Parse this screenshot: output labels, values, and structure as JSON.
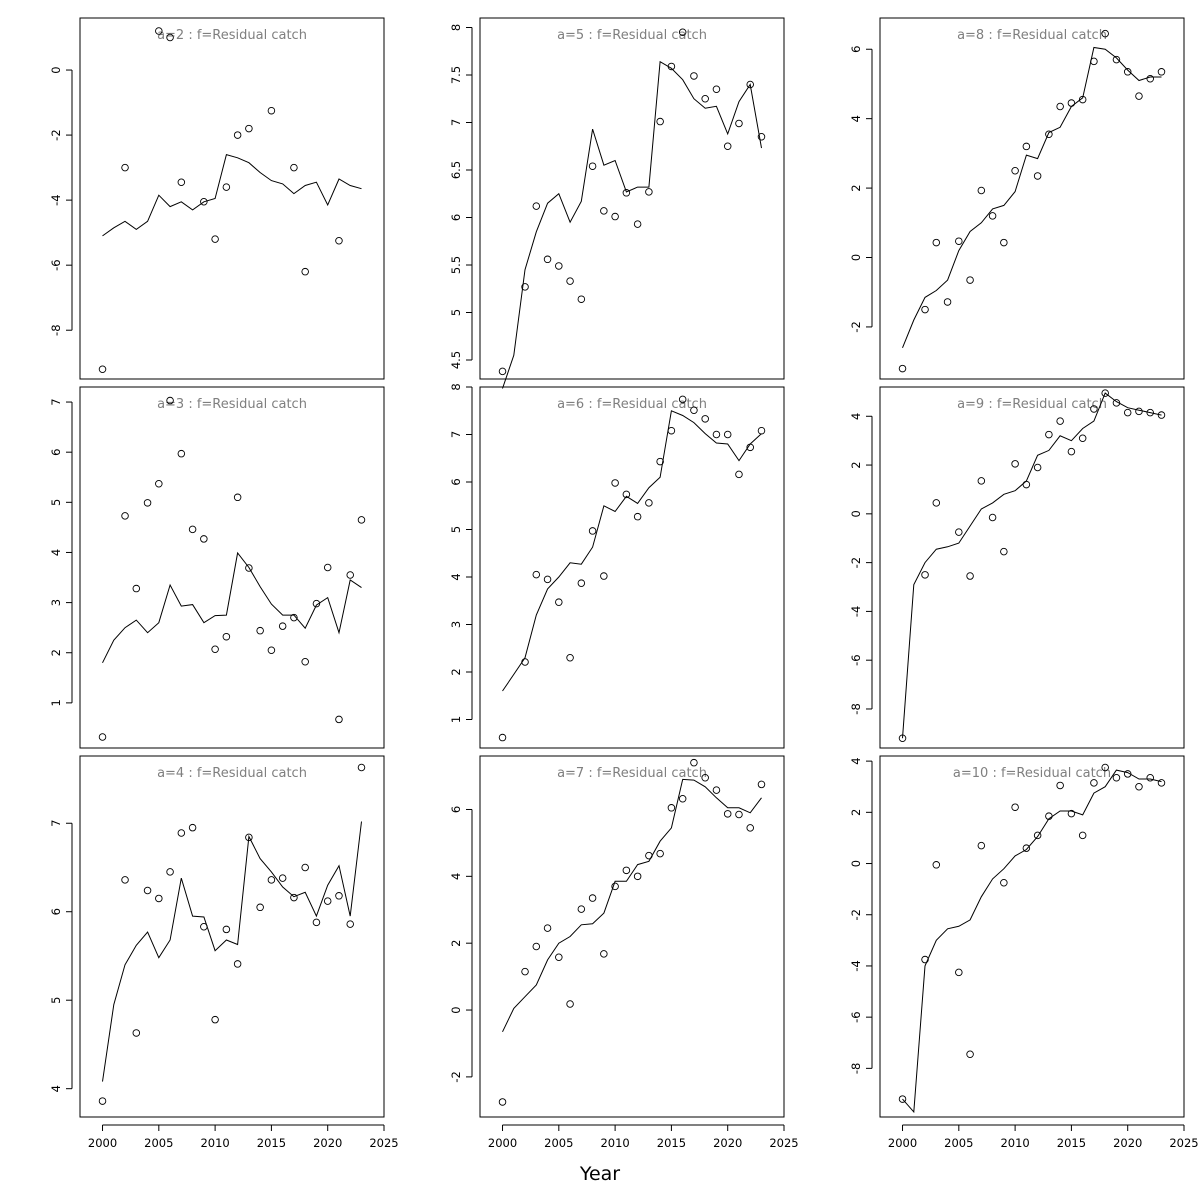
{
  "figure": {
    "xlabel": "Year",
    "x_ticks": [
      "2000",
      "2005",
      "2010",
      "2015",
      "2020",
      "2025"
    ]
  },
  "chart_data": [
    {
      "type": "line",
      "title": "a=2  :  f=Residual catch",
      "xlim": [
        1998,
        2025
      ],
      "ylim": [
        -9.5,
        1.6
      ],
      "y_ticks": [
        -8,
        -6,
        -4,
        -2,
        0
      ],
      "series": [
        {
          "type": "scatter",
          "x": [
            2000,
            2002,
            2005,
            2006,
            2007,
            2009,
            2010,
            2011,
            2012,
            2013,
            2015,
            2017,
            2018,
            2021
          ],
          "y": [
            -9.2,
            -3.0,
            1.2,
            1.0,
            -3.45,
            -4.05,
            -5.2,
            -3.6,
            -2.0,
            -1.8,
            -1.25,
            -3.0,
            -6.2,
            -5.25
          ]
        },
        {
          "type": "line",
          "x": [
            2000,
            2001,
            2002,
            2003,
            2004,
            2005,
            2006,
            2007,
            2008,
            2009,
            2010,
            2011,
            2012,
            2013,
            2014,
            2015,
            2016,
            2017,
            2018,
            2019,
            2020,
            2021,
            2022,
            2023
          ],
          "y": [
            -5.1,
            -4.85,
            -4.65,
            -4.9,
            -4.65,
            -3.85,
            -4.2,
            -4.05,
            -4.3,
            -4.05,
            -3.95,
            -2.6,
            -2.7,
            -2.85,
            -3.15,
            -3.4,
            -3.5,
            -3.8,
            -3.55,
            -3.45,
            -4.15,
            -3.35,
            -3.55,
            -3.65
          ]
        }
      ]
    },
    {
      "type": "line",
      "title": "a=5  :  f=Residual catch",
      "xlim": [
        1998,
        2025
      ],
      "ylim": [
        4.3,
        8.1
      ],
      "y_ticks": [
        4.5,
        5.0,
        5.5,
        6.0,
        6.5,
        7.0,
        7.5,
        8.0
      ],
      "series": [
        {
          "type": "scatter",
          "x": [
            2000,
            2002,
            2003,
            2004,
            2005,
            2006,
            2007,
            2008,
            2009,
            2010,
            2011,
            2012,
            2013,
            2014,
            2015,
            2016,
            2017,
            2018,
            2019,
            2020,
            2021,
            2022,
            2023
          ],
          "y": [
            4.38,
            5.27,
            6.12,
            5.56,
            5.49,
            5.33,
            5.14,
            6.54,
            6.07,
            6.01,
            6.26,
            5.93,
            6.27,
            7.01,
            7.59,
            7.95,
            7.49,
            7.25,
            7.35,
            6.75,
            6.99,
            7.4,
            6.85
          ]
        },
        {
          "type": "line",
          "x": [
            2000,
            2001,
            2002,
            2003,
            2004,
            2005,
            2006,
            2007,
            2008,
            2009,
            2010,
            2011,
            2012,
            2013,
            2014,
            2015,
            2016,
            2017,
            2018,
            2019,
            2020,
            2021,
            2022,
            2023
          ],
          "y": [
            4.2,
            4.55,
            5.45,
            5.85,
            6.15,
            6.25,
            5.95,
            6.17,
            6.93,
            6.55,
            6.6,
            6.27,
            6.32,
            6.32,
            7.64,
            7.57,
            7.45,
            7.25,
            7.15,
            7.17,
            6.88,
            7.22,
            7.4,
            6.73
          ]
        }
      ]
    },
    {
      "type": "line",
      "title": "a=8  :  f=Residual catch",
      "xlim": [
        1998,
        2025
      ],
      "ylim": [
        -3.5,
        6.9
      ],
      "y_ticks": [
        -2,
        0,
        2,
        4,
        6
      ],
      "series": [
        {
          "type": "scatter",
          "x": [
            2000,
            2002,
            2003,
            2004,
            2005,
            2006,
            2007,
            2008,
            2009,
            2010,
            2011,
            2012,
            2013,
            2014,
            2015,
            2016,
            2017,
            2018,
            2019,
            2020,
            2021,
            2022,
            2023
          ],
          "y": [
            -3.2,
            -1.5,
            0.43,
            -1.28,
            0.47,
            -0.65,
            1.93,
            1.2,
            0.43,
            2.5,
            3.2,
            2.35,
            3.55,
            4.35,
            4.45,
            4.55,
            5.65,
            6.45,
            5.7,
            5.35,
            4.65,
            5.15,
            5.35
          ]
        },
        {
          "type": "line",
          "x": [
            2000,
            2001,
            2002,
            2003,
            2004,
            2005,
            2006,
            2007,
            2008,
            2009,
            2010,
            2011,
            2012,
            2013,
            2014,
            2015,
            2016,
            2017,
            2018,
            2019,
            2020,
            2021,
            2022,
            2023
          ],
          "y": [
            -2.6,
            -1.8,
            -1.15,
            -0.95,
            -0.65,
            0.2,
            0.75,
            1.0,
            1.4,
            1.5,
            1.9,
            2.95,
            2.85,
            3.6,
            3.75,
            4.35,
            4.6,
            6.05,
            6.0,
            5.75,
            5.4,
            5.1,
            5.2,
            5.2
          ]
        }
      ]
    },
    {
      "type": "line",
      "title": "a=3  :  f=Residual catch",
      "xlim": [
        1998,
        2025
      ],
      "ylim": [
        0.1,
        7.3
      ],
      "y_ticks": [
        1,
        2,
        3,
        4,
        5,
        6,
        7
      ],
      "series": [
        {
          "type": "scatter",
          "x": [
            2000,
            2002,
            2003,
            2004,
            2005,
            2006,
            2007,
            2008,
            2009,
            2010,
            2011,
            2012,
            2013,
            2014,
            2015,
            2016,
            2017,
            2018,
            2019,
            2020,
            2021,
            2022,
            2023
          ],
          "y": [
            0.32,
            4.73,
            3.28,
            4.99,
            5.37,
            7.03,
            5.97,
            4.46,
            4.27,
            2.07,
            2.32,
            5.1,
            3.69,
            2.44,
            2.05,
            2.53,
            2.7,
            1.82,
            2.98,
            3.7,
            0.67,
            3.55,
            4.65
          ]
        },
        {
          "type": "line",
          "x": [
            2000,
            2001,
            2002,
            2003,
            2004,
            2005,
            2006,
            2007,
            2008,
            2009,
            2010,
            2011,
            2012,
            2013,
            2014,
            2015,
            2016,
            2017,
            2018,
            2019,
            2020,
            2021,
            2022,
            2023
          ],
          "y": [
            1.8,
            2.25,
            2.5,
            2.65,
            2.4,
            2.6,
            3.35,
            2.93,
            2.96,
            2.6,
            2.74,
            2.75,
            3.99,
            3.7,
            3.32,
            2.97,
            2.75,
            2.75,
            2.49,
            2.95,
            3.1,
            2.4,
            3.45,
            3.3
          ]
        }
      ]
    },
    {
      "type": "line",
      "title": "a=6  :  f=Residual catch",
      "xlim": [
        1998,
        2025
      ],
      "ylim": [
        0.4,
        8.0
      ],
      "y_ticks": [
        1,
        2,
        3,
        4,
        5,
        6,
        7,
        8
      ],
      "series": [
        {
          "type": "scatter",
          "x": [
            2000,
            2002,
            2003,
            2004,
            2005,
            2006,
            2007,
            2008,
            2009,
            2010,
            2011,
            2012,
            2013,
            2014,
            2015,
            2016,
            2017,
            2018,
            2019,
            2020,
            2021,
            2022,
            2023
          ],
          "y": [
            0.62,
            2.21,
            4.05,
            3.95,
            3.47,
            2.3,
            3.87,
            4.97,
            4.02,
            5.98,
            5.74,
            5.27,
            5.56,
            6.43,
            7.08,
            7.74,
            7.51,
            7.33,
            7.0,
            7.0,
            6.16,
            6.73,
            7.08
          ]
        },
        {
          "type": "line",
          "x": [
            2000,
            2001,
            2002,
            2003,
            2004,
            2005,
            2006,
            2007,
            2008,
            2009,
            2010,
            2011,
            2012,
            2013,
            2014,
            2015,
            2016,
            2017,
            2018,
            2019,
            2020,
            2021,
            2022,
            2023
          ],
          "y": [
            1.6,
            1.95,
            2.3,
            3.2,
            3.75,
            4.0,
            4.3,
            4.27,
            4.63,
            5.5,
            5.38,
            5.7,
            5.55,
            5.88,
            6.1,
            7.5,
            7.4,
            7.25,
            7.02,
            6.82,
            6.8,
            6.45,
            6.8,
            7.02
          ]
        }
      ]
    },
    {
      "type": "line",
      "title": "a=9  :  f=Residual catch",
      "xlim": [
        1998,
        2025
      ],
      "ylim": [
        -9.6,
        5.2
      ],
      "y_ticks": [
        -8,
        -6,
        -4,
        -2,
        0,
        2,
        4
      ],
      "series": [
        {
          "type": "scatter",
          "x": [
            2000,
            2002,
            2003,
            2005,
            2006,
            2007,
            2008,
            2009,
            2010,
            2011,
            2012,
            2013,
            2014,
            2015,
            2016,
            2017,
            2018,
            2019,
            2020,
            2021,
            2022,
            2023
          ],
          "y": [
            -9.2,
            -2.5,
            0.45,
            -0.75,
            -2.55,
            1.35,
            -0.15,
            -1.55,
            2.05,
            1.2,
            1.9,
            3.25,
            3.8,
            2.55,
            3.1,
            4.3,
            4.95,
            4.55,
            4.15,
            4.2,
            4.15,
            4.05
          ]
        },
        {
          "type": "line",
          "x": [
            2000,
            2001,
            2002,
            2003,
            2004,
            2005,
            2006,
            2007,
            2008,
            2009,
            2010,
            2011,
            2012,
            2013,
            2014,
            2015,
            2016,
            2017,
            2018,
            2019,
            2020,
            2021,
            2022,
            2023
          ],
          "y": [
            -9.2,
            -2.9,
            -2.0,
            -1.45,
            -1.35,
            -1.2,
            -0.5,
            0.2,
            0.45,
            0.8,
            0.95,
            1.35,
            2.4,
            2.6,
            3.2,
            3.0,
            3.5,
            3.8,
            4.95,
            4.6,
            4.35,
            4.25,
            4.15,
            4.05
          ]
        }
      ]
    },
    {
      "type": "line",
      "title": "a=4  :  f=Residual catch",
      "xlim": [
        1998,
        2025
      ],
      "ylim": [
        3.68,
        7.76
      ],
      "y_ticks": [
        4,
        5,
        6,
        7
      ],
      "series": [
        {
          "type": "scatter",
          "x": [
            2000,
            2002,
            2003,
            2004,
            2005,
            2006,
            2007,
            2008,
            2009,
            2010,
            2011,
            2012,
            2013,
            2014,
            2015,
            2016,
            2017,
            2018,
            2019,
            2020,
            2021,
            2022,
            2023
          ],
          "y": [
            3.86,
            6.36,
            4.63,
            6.24,
            6.15,
            6.45,
            6.89,
            6.95,
            5.83,
            4.78,
            5.8,
            5.41,
            6.84,
            6.05,
            6.36,
            6.38,
            6.16,
            6.5,
            5.88,
            6.12,
            6.18,
            5.86,
            7.63
          ]
        },
        {
          "type": "line",
          "x": [
            2000,
            2001,
            2002,
            2003,
            2004,
            2005,
            2006,
            2007,
            2008,
            2009,
            2010,
            2011,
            2012,
            2013,
            2014,
            2015,
            2016,
            2017,
            2018,
            2019,
            2020,
            2021,
            2022,
            2023
          ],
          "y": [
            4.08,
            4.95,
            5.4,
            5.62,
            5.77,
            5.48,
            5.68,
            6.38,
            5.95,
            5.94,
            5.56,
            5.68,
            5.63,
            6.85,
            6.6,
            6.45,
            6.28,
            6.17,
            6.22,
            5.95,
            6.3,
            6.52,
            5.95,
            7.02
          ]
        }
      ]
    },
    {
      "type": "line",
      "title": "a=7  :  f=Residual catch",
      "xlim": [
        1998,
        2025
      ],
      "ylim": [
        -3.2,
        7.6
      ],
      "y_ticks": [
        -2,
        0,
        2,
        4,
        6
      ],
      "series": [
        {
          "type": "scatter",
          "x": [
            2000,
            2002,
            2003,
            2004,
            2005,
            2006,
            2007,
            2008,
            2009,
            2010,
            2011,
            2012,
            2013,
            2014,
            2015,
            2016,
            2017,
            2018,
            2019,
            2020,
            2021,
            2022,
            2023
          ],
          "y": [
            -2.75,
            1.15,
            1.9,
            2.45,
            1.58,
            0.18,
            3.02,
            3.35,
            1.68,
            3.7,
            4.18,
            4.0,
            4.62,
            4.68,
            6.05,
            6.32,
            7.4,
            6.95,
            6.58,
            5.87,
            5.85,
            5.45,
            6.75
          ]
        },
        {
          "type": "line",
          "x": [
            2000,
            2001,
            2002,
            2003,
            2004,
            2005,
            2006,
            2007,
            2008,
            2009,
            2010,
            2011,
            2012,
            2013,
            2014,
            2015,
            2016,
            2017,
            2018,
            2019,
            2020,
            2021,
            2022,
            2023
          ],
          "y": [
            -0.65,
            0.05,
            0.4,
            0.75,
            1.5,
            2.0,
            2.2,
            2.55,
            2.58,
            2.9,
            3.85,
            3.85,
            4.35,
            4.45,
            5.05,
            5.45,
            6.9,
            6.88,
            6.68,
            6.35,
            6.05,
            6.05,
            5.9,
            6.35
          ]
        }
      ]
    },
    {
      "type": "line",
      "title": "a=10  :  f=Residual catch",
      "xlim": [
        1998,
        2025
      ],
      "ylim": [
        -9.9,
        4.2
      ],
      "y_ticks": [
        -8,
        -6,
        -4,
        -2,
        0,
        2,
        4
      ],
      "series": [
        {
          "type": "scatter",
          "x": [
            2000,
            2002,
            2003,
            2005,
            2006,
            2007,
            2009,
            2010,
            2011,
            2012,
            2013,
            2014,
            2015,
            2016,
            2017,
            2018,
            2019,
            2020,
            2021,
            2022,
            2023
          ],
          "y": [
            -9.2,
            -3.75,
            -0.05,
            -4.25,
            -7.45,
            0.7,
            -0.75,
            2.2,
            0.6,
            1.1,
            1.85,
            3.05,
            1.95,
            1.1,
            3.15,
            3.75,
            3.35,
            3.5,
            3.0,
            3.35,
            3.15
          ]
        },
        {
          "type": "line",
          "x": [
            2000,
            2001,
            2002,
            2003,
            2004,
            2005,
            2006,
            2007,
            2008,
            2009,
            2010,
            2011,
            2012,
            2013,
            2014,
            2015,
            2016,
            2017,
            2018,
            2019,
            2020,
            2021,
            2022,
            2023
          ],
          "y": [
            -9.2,
            -9.7,
            -4.0,
            -3.0,
            -2.55,
            -2.45,
            -2.2,
            -1.3,
            -0.6,
            -0.2,
            0.3,
            0.55,
            1.05,
            1.75,
            2.05,
            2.05,
            1.9,
            2.75,
            3.0,
            3.65,
            3.55,
            3.3,
            3.3,
            3.2
          ]
        }
      ]
    }
  ]
}
